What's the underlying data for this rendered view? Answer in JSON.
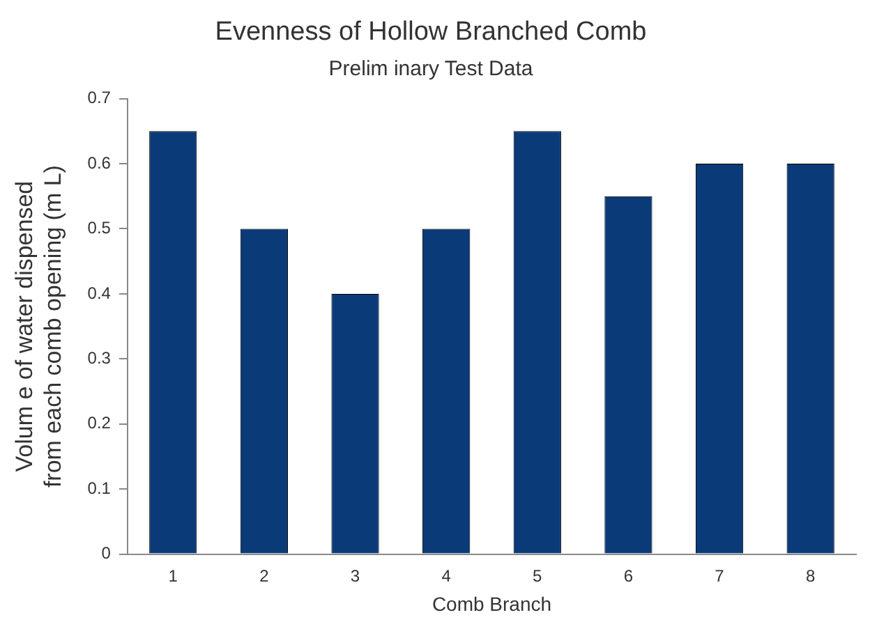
{
  "chart_data": {
    "type": "bar",
    "title": "Evenness of Hollow Branched Comb",
    "subtitle": "Prelim inary Test Data",
    "xlabel": "Comb Branch",
    "ylabel": [
      "Volum e of water dispensed",
      "from each comb opening (m L)"
    ],
    "categories": [
      "1",
      "2",
      "3",
      "4",
      "5",
      "6",
      "7",
      "8"
    ],
    "values": [
      0.65,
      0.5,
      0.4,
      0.5,
      0.65,
      0.55,
      0.6,
      0.6
    ],
    "color": "#0b3a78",
    "ylim": [
      0,
      0.7
    ],
    "yticks": [
      0,
      0.1,
      0.2,
      0.3,
      0.4,
      0.5,
      0.6,
      0.7
    ],
    "grid": false,
    "legend": false
  }
}
